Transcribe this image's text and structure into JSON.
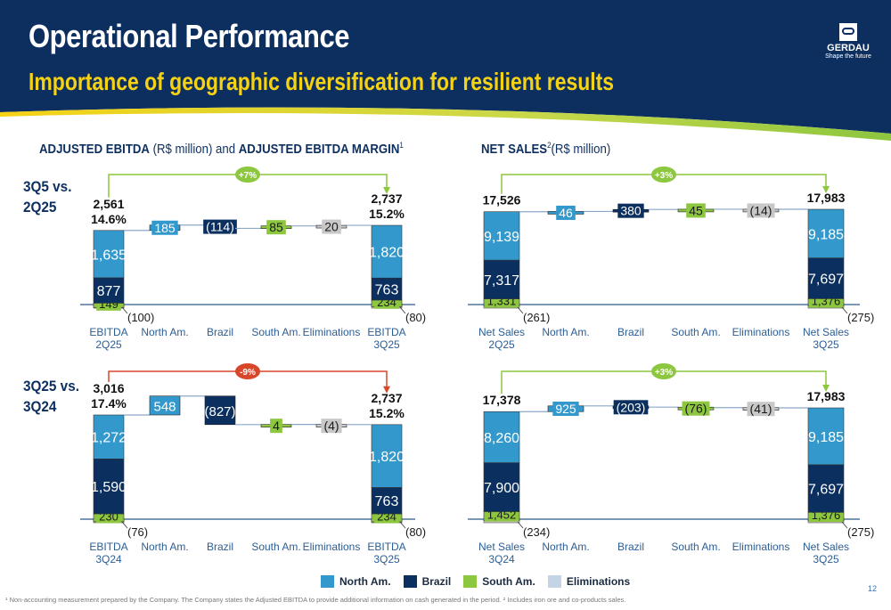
{
  "header": {
    "title": "Operational Performance",
    "subtitle": "Importance of geographic diversification for resilient results",
    "logo": {
      "name": "GERDAU",
      "tagline": "Shape the future"
    }
  },
  "sections": {
    "ebitda": {
      "title_bold_1": "ADJUSTED EBITDA",
      "title_regular": " (R$ million) and ",
      "title_bold_2": "ADJUSTED EBITDA MARGIN",
      "footnote_ref": "1"
    },
    "net_sales": {
      "title_bold": "NET SALES",
      "footnote_ref": "2",
      "title_regular": "(R$ million)"
    }
  },
  "periods": [
    {
      "line1": "3Q5 vs.",
      "line2": "2Q25"
    },
    {
      "line1": "3Q25 vs.",
      "line2": "3Q24"
    }
  ],
  "colors": {
    "north_am": "#3399cc",
    "brazil": "#0b2f5e",
    "south_am": "#8dc63f",
    "eliminations": "#c5d3e6",
    "increase": "#8dc63f",
    "decrease": "#d9472b",
    "navy": "#0d2f5f"
  },
  "legend": [
    {
      "key": "north_am",
      "label": "North Am."
    },
    {
      "key": "brazil",
      "label": "Brazil"
    },
    {
      "key": "south_am",
      "label": "South Am."
    },
    {
      "key": "eliminations",
      "label": "Eliminations"
    }
  ],
  "chart_data": [
    {
      "type": "waterfall",
      "categories": [
        [
          "EBITDA",
          "2Q25"
        ],
        [
          "North  Am."
        ],
        [
          "Brazil"
        ],
        [
          "South Am."
        ],
        [
          "Eliminations"
        ],
        [
          "EBITDA",
          "3Q25"
        ]
      ],
      "start": {
        "total": 2561,
        "total_label": "2,561",
        "margin_label": "14.6%",
        "segments": [
          {
            "key": "north_am",
            "value": 1635,
            "label": "1,635"
          },
          {
            "key": "brazil",
            "value": 877,
            "label": "877"
          },
          {
            "key": "south_am",
            "value": 149,
            "label": "149"
          },
          {
            "key": "eliminations",
            "value": -100,
            "label": "(100)"
          }
        ]
      },
      "deltas": [
        {
          "key": "north_am",
          "value": 185,
          "label": "185"
        },
        {
          "key": "brazil",
          "value": -114,
          "label": "(114)"
        },
        {
          "key": "south_am",
          "value": 85,
          "label": "85"
        },
        {
          "key": "eliminations",
          "value": 20,
          "label": "20"
        }
      ],
      "end": {
        "total": 2737,
        "total_label": "2,737",
        "margin_label": "15.2%",
        "segments": [
          {
            "key": "north_am",
            "value": 1820,
            "label": "1,820"
          },
          {
            "key": "brazil",
            "value": 763,
            "label": "763"
          },
          {
            "key": "south_am",
            "value": 234,
            "label": "234"
          },
          {
            "key": "eliminations",
            "value": -80,
            "label": "(80)"
          }
        ]
      },
      "change": {
        "label": "+7%",
        "direction": "up"
      }
    },
    {
      "type": "waterfall",
      "categories": [
        [
          "Net Sales",
          "2Q25"
        ],
        [
          "North Am."
        ],
        [
          "Brazil"
        ],
        [
          "South Am."
        ],
        [
          "Eliminations"
        ],
        [
          "Net Sales",
          "3Q25"
        ]
      ],
      "start": {
        "total": 17526,
        "total_label": "17,526",
        "segments": [
          {
            "key": "north_am",
            "value": 9139,
            "label": "9,139"
          },
          {
            "key": "brazil",
            "value": 7317,
            "label": "7,317"
          },
          {
            "key": "south_am",
            "value": 1331,
            "label": "1,331"
          },
          {
            "key": "eliminations",
            "value": -261,
            "label": "(261)"
          }
        ]
      },
      "deltas": [
        {
          "key": "north_am",
          "value": 46,
          "label": "46"
        },
        {
          "key": "brazil",
          "value": 380,
          "label": "380"
        },
        {
          "key": "south_am",
          "value": 45,
          "label": "45"
        },
        {
          "key": "eliminations",
          "value": -14,
          "label": "(14)"
        }
      ],
      "end": {
        "total": 17983,
        "total_label": "17,983",
        "segments": [
          {
            "key": "north_am",
            "value": 9185,
            "label": "9,185"
          },
          {
            "key": "brazil",
            "value": 7697,
            "label": "7,697"
          },
          {
            "key": "south_am",
            "value": 1376,
            "label": "1,376"
          },
          {
            "key": "eliminations",
            "value": -275,
            "label": "(275)"
          }
        ]
      },
      "change": {
        "label": "+3%",
        "direction": "up"
      }
    },
    {
      "type": "waterfall",
      "categories": [
        [
          "EBITDA",
          "3Q24"
        ],
        [
          "North Am."
        ],
        [
          "Brazil"
        ],
        [
          "South Am."
        ],
        [
          "Eliminations"
        ],
        [
          "EBITDA",
          "3Q25"
        ]
      ],
      "start": {
        "total": 3016,
        "total_label": "3,016",
        "margin_label": "17.4%",
        "segments": [
          {
            "key": "north_am",
            "value": 1272,
            "label": "1,272"
          },
          {
            "key": "brazil",
            "value": 1590,
            "label": "1,590"
          },
          {
            "key": "south_am",
            "value": 230,
            "label": "230"
          },
          {
            "key": "eliminations",
            "value": -76,
            "label": "(76)"
          }
        ]
      },
      "deltas": [
        {
          "key": "north_am",
          "value": 548,
          "label": "548"
        },
        {
          "key": "brazil",
          "value": -827,
          "label": "(827)"
        },
        {
          "key": "south_am",
          "value": 4,
          "label": "4"
        },
        {
          "key": "eliminations",
          "value": -4,
          "label": "(4)"
        }
      ],
      "end": {
        "total": 2737,
        "total_label": "2,737",
        "margin_label": "15.2%",
        "segments": [
          {
            "key": "north_am",
            "value": 1820,
            "label": "1,820"
          },
          {
            "key": "brazil",
            "value": 763,
            "label": "763"
          },
          {
            "key": "south_am",
            "value": 234,
            "label": "234"
          },
          {
            "key": "eliminations",
            "value": -80,
            "label": "(80)"
          }
        ]
      },
      "change": {
        "label": "-9%",
        "direction": "down"
      }
    },
    {
      "type": "waterfall",
      "categories": [
        [
          "Net Sales",
          "3Q24"
        ],
        [
          "North Am."
        ],
        [
          "Brazil"
        ],
        [
          "South Am."
        ],
        [
          "Eliminations"
        ],
        [
          "Net Sales",
          "3Q25"
        ]
      ],
      "start": {
        "total": 17378,
        "total_label": "17,378",
        "segments": [
          {
            "key": "north_am",
            "value": 8260,
            "label": "8,260"
          },
          {
            "key": "brazil",
            "value": 7900,
            "label": "7,900"
          },
          {
            "key": "south_am",
            "value": 1452,
            "label": "1,452"
          },
          {
            "key": "eliminations",
            "value": -234,
            "label": "(234)"
          }
        ]
      },
      "deltas": [
        {
          "key": "north_am",
          "value": 925,
          "label": "925"
        },
        {
          "key": "brazil",
          "value": -203,
          "label": "(203)"
        },
        {
          "key": "south_am",
          "value": -76,
          "label": "(76)"
        },
        {
          "key": "eliminations",
          "value": -41,
          "label": "(41)"
        }
      ],
      "end": {
        "total": 17983,
        "total_label": "17,983",
        "segments": [
          {
            "key": "north_am",
            "value": 9185,
            "label": "9,185"
          },
          {
            "key": "brazil",
            "value": 7697,
            "label": "7,697"
          },
          {
            "key": "south_am",
            "value": 1376,
            "label": "1,376"
          },
          {
            "key": "eliminations",
            "value": -275,
            "label": "(275)"
          }
        ]
      },
      "change": {
        "label": "+3%",
        "direction": "up"
      }
    }
  ],
  "footnote": "¹ Non-accounting measurement prepared by the Company. The Company states the Adjusted EBITDA to provide additional information on cash generated in the period.  ² Includes iron ore and co-products sales.",
  "page_number": "12"
}
